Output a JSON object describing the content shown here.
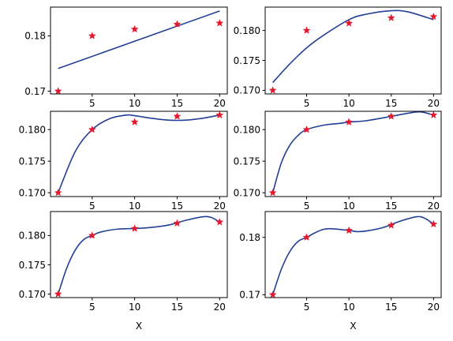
{
  "colors": {
    "background": "#ffffff",
    "fit_line": "#233f96",
    "markers": "#e31a2f"
  },
  "chart_data": [
    {
      "type": "scatter",
      "fit": "linear",
      "points": {
        "x": [
          1,
          5,
          10,
          15,
          20
        ],
        "y": [
          0.17,
          0.18,
          0.1812,
          0.1821,
          0.1823
        ]
      },
      "curve": [
        [
          1,
          0.1741
        ],
        [
          20,
          0.1845
        ]
      ],
      "xlim": [
        0.1,
        20.9
      ],
      "ylim": [
        0.1695,
        0.1852
      ],
      "xticks": [
        5,
        10,
        15,
        20
      ],
      "xtick_labels": [
        "5",
        "10",
        "15",
        "20"
      ],
      "yticks": [
        0.17,
        0.18
      ],
      "ytick_labels": [
        "0.17",
        "0.18"
      ],
      "xlabel": ""
    },
    {
      "type": "scatter",
      "fit": "quadratic",
      "points": {
        "x": [
          1,
          5,
          10,
          15,
          20
        ],
        "y": [
          0.17,
          0.18,
          0.1812,
          0.1821,
          0.1823
        ]
      },
      "curve": [
        [
          1,
          0.1713
        ],
        [
          3,
          0.1744
        ],
        [
          5,
          0.1771
        ],
        [
          7,
          0.1792
        ],
        [
          10,
          0.1818
        ],
        [
          12,
          0.1827
        ],
        [
          15,
          0.1833
        ],
        [
          17,
          0.1831
        ],
        [
          20,
          0.1818
        ]
      ],
      "xlim": [
        0.1,
        20.9
      ],
      "ylim": [
        0.1694,
        0.1839
      ],
      "xticks": [
        5,
        10,
        15,
        20
      ],
      "xtick_labels": [
        "5",
        "10",
        "15",
        "20"
      ],
      "yticks": [
        0.17,
        0.175,
        0.18
      ],
      "ytick_labels": [
        "0.170",
        "0.175",
        "0.180"
      ],
      "xlabel": ""
    },
    {
      "type": "scatter",
      "fit": "cubic",
      "points": {
        "x": [
          1,
          5,
          10,
          15,
          20
        ],
        "y": [
          0.17,
          0.18,
          0.1812,
          0.1821,
          0.1823
        ]
      },
      "curve": [
        [
          1,
          0.17
        ],
        [
          3,
          0.1765
        ],
        [
          5,
          0.18
        ],
        [
          7,
          0.1817
        ],
        [
          9,
          0.1823
        ],
        [
          10,
          0.1822
        ],
        [
          12,
          0.1818
        ],
        [
          14,
          0.1815
        ],
        [
          16,
          0.1815
        ],
        [
          18,
          0.1818
        ],
        [
          20,
          0.1823
        ]
      ],
      "xlim": [
        0.1,
        20.9
      ],
      "ylim": [
        0.1694,
        0.1829
      ],
      "xticks": [
        5,
        10,
        15,
        20
      ],
      "xtick_labels": [
        "5",
        "10",
        "15",
        "20"
      ],
      "yticks": [
        0.17,
        0.175,
        0.18
      ],
      "ytick_labels": [
        "0.170",
        "0.175",
        "0.180"
      ],
      "xlabel": ""
    },
    {
      "type": "scatter",
      "fit": "quartic",
      "points": {
        "x": [
          1,
          5,
          10,
          15,
          20
        ],
        "y": [
          0.17,
          0.18,
          0.1812,
          0.1821,
          0.1823
        ]
      },
      "curve": [
        [
          1,
          0.17
        ],
        [
          2,
          0.1747
        ],
        [
          3,
          0.1775
        ],
        [
          4,
          0.1791
        ],
        [
          5,
          0.18
        ],
        [
          7,
          0.1807
        ],
        [
          9,
          0.181
        ],
        [
          10,
          0.1812
        ],
        [
          12,
          0.1814
        ],
        [
          15,
          0.1821
        ],
        [
          17,
          0.1826
        ],
        [
          18.5,
          0.1828
        ],
        [
          20,
          0.1823
        ]
      ],
      "xlim": [
        0.1,
        20.9
      ],
      "ylim": [
        0.1694,
        0.1829
      ],
      "xticks": [
        5,
        10,
        15,
        20
      ],
      "xtick_labels": [
        "5",
        "10",
        "15",
        "20"
      ],
      "yticks": [
        0.17,
        0.175,
        0.18
      ],
      "ytick_labels": [
        "0.170",
        "0.175",
        "0.180"
      ],
      "xlabel": ""
    },
    {
      "type": "scatter",
      "fit": "quintic",
      "points": {
        "x": [
          1,
          5,
          10,
          15,
          20
        ],
        "y": [
          0.17,
          0.18,
          0.1812,
          0.1821,
          0.1823
        ]
      },
      "curve": [
        [
          1,
          0.17
        ],
        [
          2,
          0.1744
        ],
        [
          3,
          0.1775
        ],
        [
          4,
          0.1793
        ],
        [
          5,
          0.18
        ],
        [
          6,
          0.1806
        ],
        [
          8,
          0.1811
        ],
        [
          10,
          0.1812
        ],
        [
          12,
          0.1814
        ],
        [
          14,
          0.1818
        ],
        [
          16,
          0.1826
        ],
        [
          18,
          0.1832
        ],
        [
          19,
          0.1831
        ],
        [
          20,
          0.1823
        ]
      ],
      "xlim": [
        0.1,
        20.9
      ],
      "ylim": [
        0.1694,
        0.1841
      ],
      "xticks": [
        5,
        10,
        15,
        20
      ],
      "xtick_labels": [
        "5",
        "10",
        "15",
        "20"
      ],
      "yticks": [
        0.17,
        0.175,
        0.18
      ],
      "ytick_labels": [
        "0.170",
        "0.175",
        "0.180"
      ],
      "xlabel": "X"
    },
    {
      "type": "scatter",
      "fit": "sextic",
      "points": {
        "x": [
          1,
          5,
          10,
          15,
          20
        ],
        "y": [
          0.17,
          0.18,
          0.1812,
          0.1821,
          0.1823
        ]
      },
      "curve": [
        [
          1,
          0.17
        ],
        [
          2,
          0.1744
        ],
        [
          3,
          0.1775
        ],
        [
          4,
          0.1793
        ],
        [
          5,
          0.18
        ],
        [
          6,
          0.1808
        ],
        [
          7,
          0.1814
        ],
        [
          8,
          0.1815
        ],
        [
          10,
          0.1812
        ],
        [
          11,
          0.181
        ],
        [
          12,
          0.1811
        ],
        [
          14,
          0.1817
        ],
        [
          16,
          0.1828
        ],
        [
          18,
          0.1836
        ],
        [
          19,
          0.1833
        ],
        [
          20,
          0.1823
        ]
      ],
      "xlim": [
        0.1,
        20.9
      ],
      "ylim": [
        0.1695,
        0.1845
      ],
      "xticks": [
        5,
        10,
        15,
        20
      ],
      "xtick_labels": [
        "5",
        "10",
        "15",
        "20"
      ],
      "yticks": [
        0.17,
        0.18
      ],
      "ytick_labels": [
        "0.17",
        "0.18"
      ],
      "xlabel": "X"
    }
  ]
}
